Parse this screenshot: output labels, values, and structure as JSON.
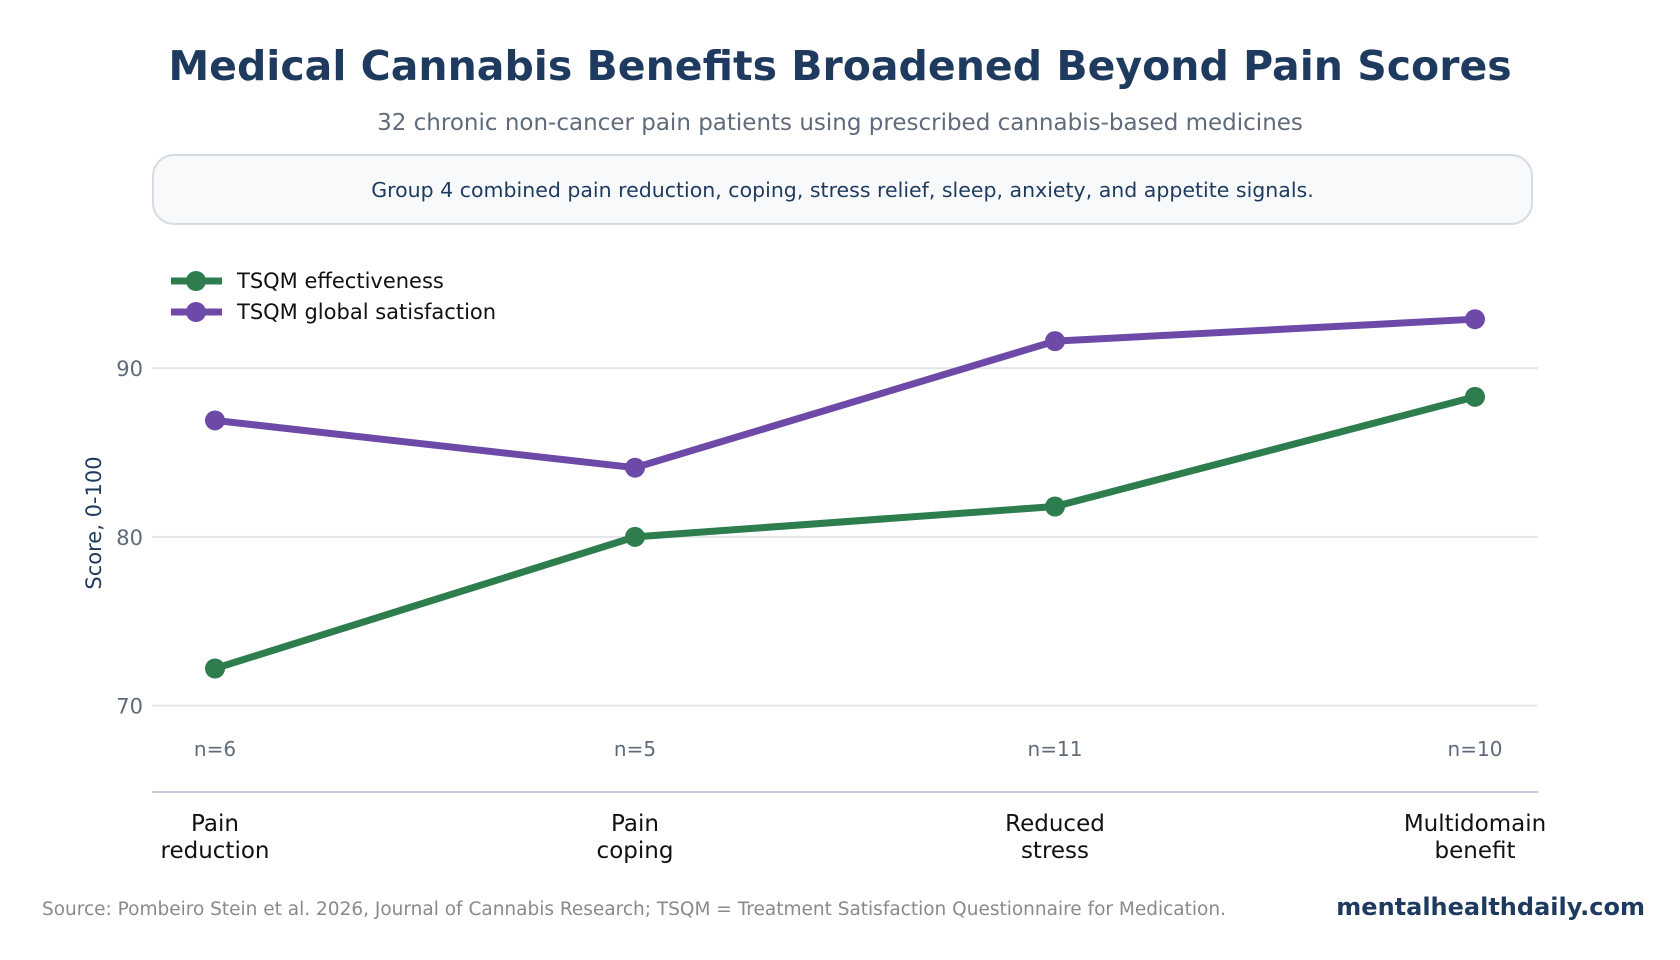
{
  "header": {
    "title": "Medical Cannabis Benefits Broadened Beyond Pain Scores",
    "subtitle": "32 chronic non-cancer pain patients using prescribed cannabis-based medicines"
  },
  "callout": {
    "text": "Group 4 combined pain reduction, coping, stress relief, sleep, anxiety, and appetite signals."
  },
  "footer": {
    "source": "Source: Pombeiro Stein et al. 2026, Journal of Cannabis Research; TSQM = Treatment Satisfaction Questionnaire for Medication.",
    "brand": "mentalhealthdaily.com"
  },
  "chart_data": {
    "type": "line",
    "title": "Medical Cannabis Benefits Broadened Beyond Pain Scores",
    "subtitle": "32 chronic non-cancer pain patients using prescribed cannabis-based medicines",
    "xlabel": "",
    "ylabel": "Score, 0-100",
    "categories": [
      [
        "Pain",
        "reduction"
      ],
      [
        "Pain",
        "coping"
      ],
      [
        "Reduced",
        "stress"
      ],
      [
        "Multidomain",
        "benefit"
      ]
    ],
    "sample_sizes": [
      "n=6",
      "n=5",
      "n=11",
      "n=10"
    ],
    "ylim": [
      65,
      97
    ],
    "yticks": [
      70,
      80,
      90
    ],
    "grid": true,
    "legend_position": "top-left",
    "series": [
      {
        "name": "TSQM effectiveness",
        "color": "#2e7d4f",
        "values": [
          72.2,
          80.0,
          81.8,
          88.3
        ]
      },
      {
        "name": "TSQM global satisfaction",
        "color": "#6e4aa8",
        "values": [
          86.9,
          84.1,
          91.6,
          92.9
        ]
      }
    ]
  }
}
